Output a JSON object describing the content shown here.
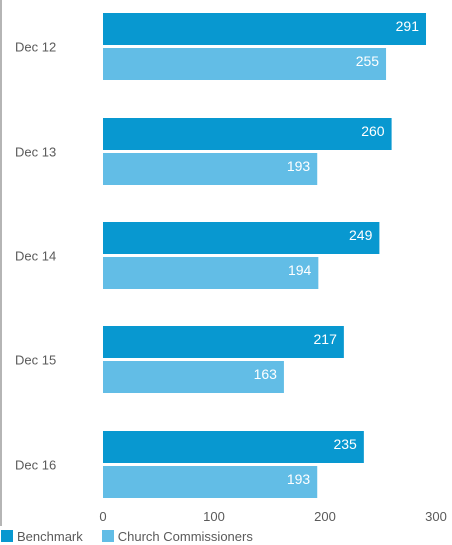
{
  "chart_data": {
    "type": "bar",
    "orientation": "horizontal",
    "categories": [
      "Dec 12",
      "Dec 13",
      "Dec 14",
      "Dec 15",
      "Dec 16"
    ],
    "series": [
      {
        "name": "Benchmark",
        "color": "#0898d0",
        "values": [
          291,
          260,
          249,
          217,
          235
        ]
      },
      {
        "name": "Church Commissioners",
        "color": "#62bde6",
        "values": [
          255,
          193,
          194,
          163,
          193
        ]
      }
    ],
    "xlim": [
      0,
      300
    ],
    "xticks": [
      "0",
      "100",
      "200",
      "300"
    ],
    "legend_position": "bottom-left",
    "grid": false,
    "title": "",
    "xlabel": "",
    "ylabel": ""
  }
}
